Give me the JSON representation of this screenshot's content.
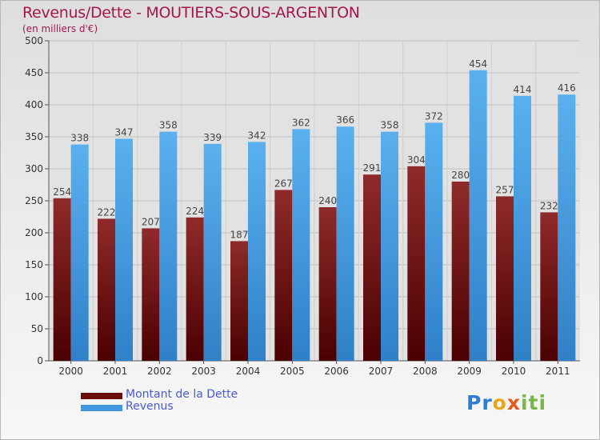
{
  "header": {
    "title": "Revenus/Dette - MOUTIERS-SOUS-ARGENTON",
    "subtitle": "(en milliers d'€)"
  },
  "legend": [
    {
      "label": "Montant de la Dette",
      "color": "#7a1414"
    },
    {
      "label": "Revenus",
      "color": "#4aa3e6"
    }
  ],
  "logo": {
    "text": "Proxiti"
  },
  "chart_data": {
    "type": "bar",
    "title": "Revenus/Dette - MOUTIERS-SOUS-ARGENTON",
    "subtitle": "(en milliers d'€)",
    "categories": [
      "2000",
      "2001",
      "2002",
      "2003",
      "2004",
      "2005",
      "2006",
      "2007",
      "2008",
      "2009",
      "2010",
      "2011"
    ],
    "series": [
      {
        "name": "Montant de la Dette",
        "color": "#7a1414",
        "values": [
          254,
          222,
          207,
          224,
          187,
          267,
          240,
          291,
          304,
          280,
          257,
          232
        ]
      },
      {
        "name": "Revenus",
        "color": "#4aa3e6",
        "values": [
          338,
          347,
          358,
          339,
          342,
          362,
          366,
          358,
          372,
          454,
          414,
          416
        ]
      }
    ],
    "ylim": [
      0,
      500
    ],
    "yticks": [
      0,
      50,
      100,
      150,
      200,
      250,
      300,
      350,
      400,
      450,
      500
    ],
    "grid": true,
    "legend_position": "bottom-left"
  }
}
